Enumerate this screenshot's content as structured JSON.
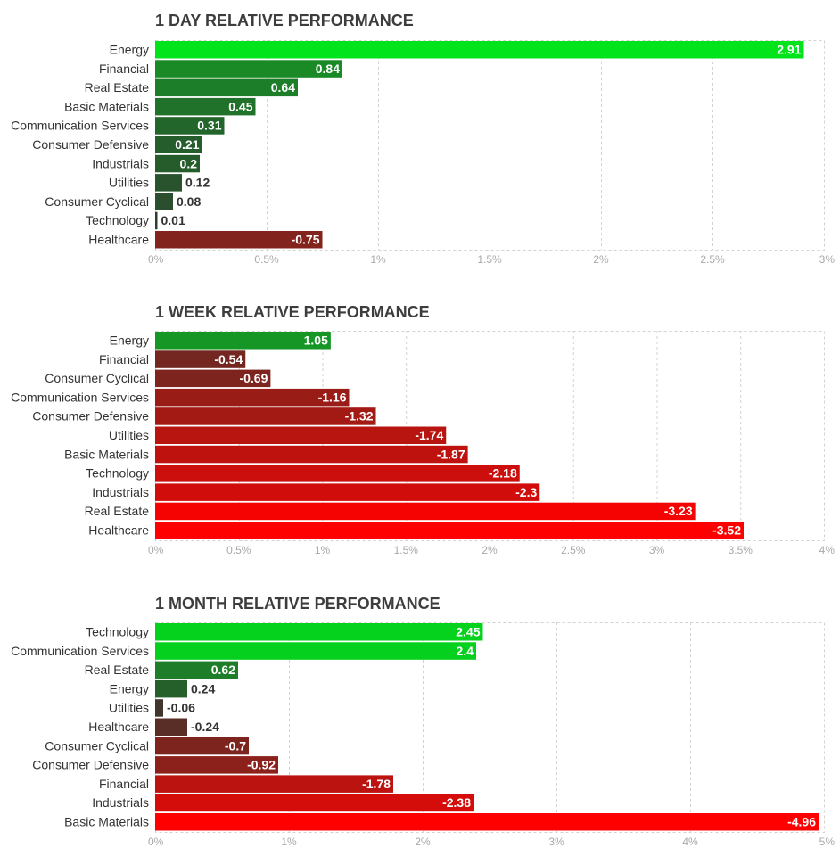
{
  "chart_data": [
    {
      "type": "bar",
      "orientation": "horizontal",
      "title": "1 DAY RELATIVE PERFORMANCE",
      "categories": [
        "Energy",
        "Financial",
        "Real Estate",
        "Basic Materials",
        "Communication Services",
        "Consumer Defensive",
        "Industrials",
        "Utilities",
        "Consumer Cyclical",
        "Technology",
        "Healthcare"
      ],
      "values": [
        2.91,
        0.84,
        0.64,
        0.45,
        0.31,
        0.21,
        0.2,
        0.12,
        0.08,
        0.01,
        -0.75
      ],
      "value_labels": [
        "2.91",
        "0.84",
        "0.64",
        "0.45",
        "0.31",
        "0.21",
        "0.2",
        "0.12",
        "0.08",
        "0.01",
        "-0.75"
      ],
      "xlim": [
        0,
        3
      ],
      "ticks": [
        "0%",
        "0.5%",
        "1%",
        "1.5%",
        "2%",
        "2.5%",
        "3%"
      ],
      "grid": true
    },
    {
      "type": "bar",
      "orientation": "horizontal",
      "title": "1 WEEK RELATIVE PERFORMANCE",
      "categories": [
        "Energy",
        "Financial",
        "Consumer Cyclical",
        "Communication Services",
        "Consumer Defensive",
        "Utilities",
        "Basic Materials",
        "Technology",
        "Industrials",
        "Real Estate",
        "Healthcare"
      ],
      "values": [
        1.05,
        -0.54,
        -0.69,
        -1.16,
        -1.32,
        -1.74,
        -1.87,
        -2.18,
        -2.3,
        -3.23,
        -3.52
      ],
      "value_labels": [
        "1.05",
        "-0.54",
        "-0.69",
        "-1.16",
        "-1.32",
        "-1.74",
        "-1.87",
        "-2.18",
        "-2.3",
        "-3.23",
        "-3.52"
      ],
      "xlim": [
        0,
        4
      ],
      "ticks": [
        "0%",
        "0.5%",
        "1%",
        "1.5%",
        "2%",
        "2.5%",
        "3%",
        "3.5%",
        "4%"
      ],
      "grid": true
    },
    {
      "type": "bar",
      "orientation": "horizontal",
      "title": "1 MONTH RELATIVE PERFORMANCE",
      "categories": [
        "Technology",
        "Communication Services",
        "Real Estate",
        "Energy",
        "Utilities",
        "Healthcare",
        "Consumer Cyclical",
        "Consumer Defensive",
        "Financial",
        "Industrials",
        "Basic Materials"
      ],
      "values": [
        2.45,
        2.4,
        0.62,
        0.24,
        -0.06,
        -0.24,
        -0.7,
        -0.92,
        -1.78,
        -2.38,
        -4.96
      ],
      "value_labels": [
        "2.45",
        "2.4",
        "0.62",
        "0.24",
        "-0.06",
        "-0.24",
        "-0.7",
        "-0.92",
        "-1.78",
        "-2.38",
        "-4.96"
      ],
      "xlim": [
        0,
        5
      ],
      "ticks": [
        "0%",
        "1%",
        "2%",
        "3%",
        "4%",
        "5%"
      ],
      "grid": true
    }
  ],
  "colors": {
    "positive_max": "#00e61b",
    "neutral": "#2f3a30",
    "negative_max": "#ff0000",
    "grid": "#d2d2d2",
    "label_light": "#ffffff",
    "label_dark": "#333333"
  }
}
